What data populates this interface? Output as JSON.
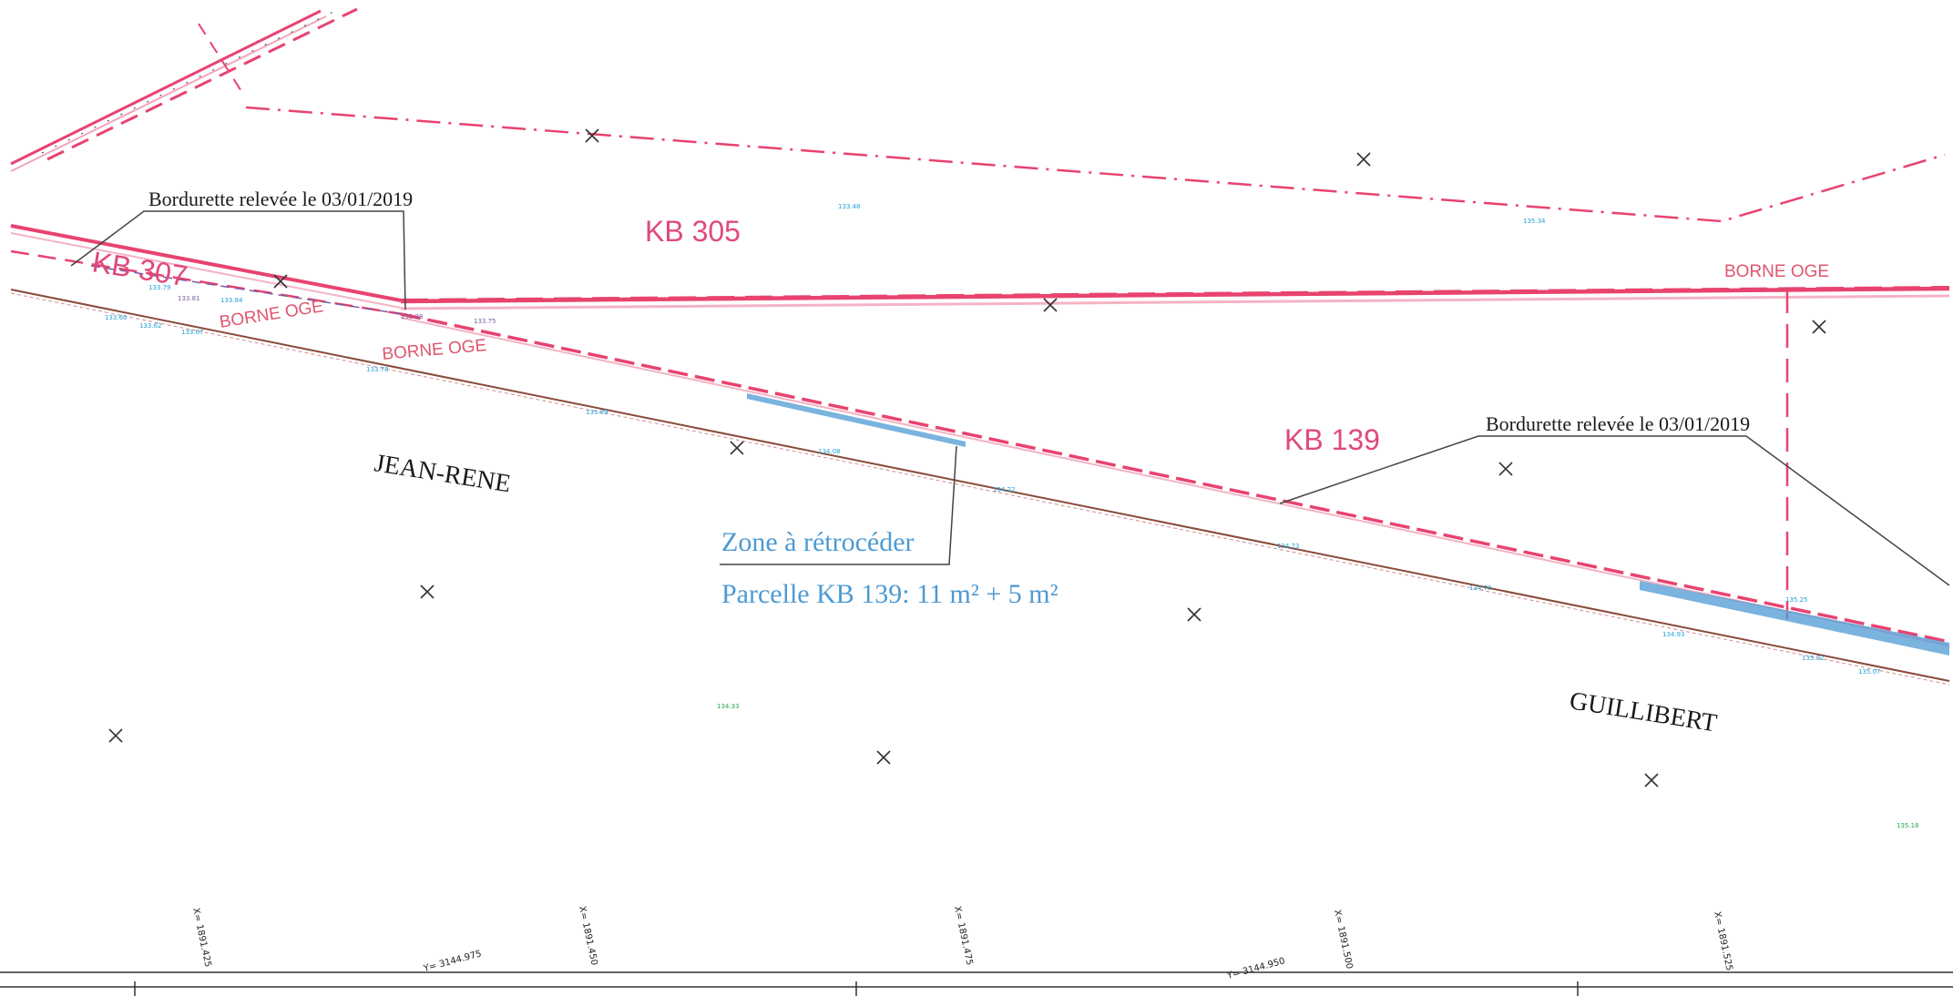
{
  "parcels": {
    "kb305": "KB 305",
    "kb307": "KB 307",
    "kb139": "KB 139"
  },
  "bornes": {
    "left": "BORNE OGE",
    "center": "BORNE OGE",
    "right": "BORNE OGE"
  },
  "notes": {
    "bordurette_left": "Bordurette relevée le 03/01/2019",
    "bordurette_right": "Bordurette relevée le 03/01/2019"
  },
  "owners": {
    "west": "JEAN-RENE",
    "east": "GUILLIBERT"
  },
  "zone": {
    "title": "Zone à rétrocéder",
    "detail": "Parcelle KB 139: 11 m² + 5 m²"
  },
  "altitudes": {
    "top_a": "133.48",
    "top_b": "135.34",
    "a1": "133.79",
    "a2": "133.81",
    "a3": "133.84",
    "a4": "133.60",
    "a5": "133.62",
    "a6": "133.67",
    "a7": "133.88",
    "a8": "133.75",
    "a9": "133.78",
    "b1": "133.89",
    "b2": "134.08",
    "b3": "134.22",
    "b4": "134.23",
    "b5": "134.70",
    "b6": "134.93",
    "b7": "135.25",
    "b8": "135.02",
    "b9": "135.07",
    "g1": "134.33",
    "g2": "135.18"
  },
  "grid_labels": {
    "x1": "X= 1891.425",
    "x2": "X= 1891.450",
    "x3": "X= 1891.475",
    "x4": "X= 1891.500",
    "x5": "X= 1891.525",
    "y1": "Y= 3144.975",
    "y2": "Y= 3144.950"
  },
  "colors": {
    "parcel_line": "#e8436f",
    "zone_blue": "#4e9ad3",
    "kerb_brown": "#8a4a3a"
  }
}
